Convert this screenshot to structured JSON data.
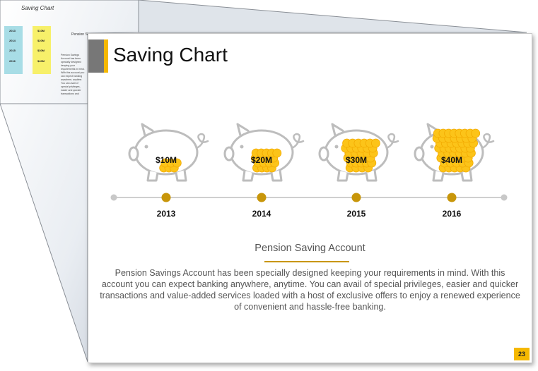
{
  "background_slide": {
    "title": "Saving Chart",
    "heading": "Pension Sa",
    "paragraph": "Pension Savings Account has been specially designed keeping your requirements in mind. With this account you can expect banking anywhere, anytime. You can avail of special privileges, easier and quicker transactions and value-added services loaded with a host of exclusive offers to enjoy a renewed experience of convenient and hassle-free banking.",
    "years": [
      "2013",
      "2014",
      "2015",
      "2016"
    ],
    "amounts": [
      "$10M",
      "$20M",
      "$30M",
      "$40M"
    ]
  },
  "slide": {
    "title": "Saving Chart",
    "heading": "Pension Saving Account",
    "description": "Pension Savings Account has been specially designed keeping your requirements in mind. With this account you can expect banking anywhere, anytime. You can avail of special privileges, easier and quicker transactions and value-added services loaded with a host of exclusive offers to enjoy a renewed experience of convenient and hassle-free banking.",
    "page_number": "23",
    "milestones": [
      {
        "year": "2013",
        "amount": "$10M"
      },
      {
        "year": "2014",
        "amount": "$20M"
      },
      {
        "year": "2015",
        "amount": "$30M"
      },
      {
        "year": "2016",
        "amount": "$40M"
      }
    ]
  },
  "colors": {
    "accent_gold": "#f5b800",
    "coin": "#fcc419",
    "marker": "#c8960a",
    "pig_outline": "#bdbdbd",
    "title_grey": "#777777"
  }
}
